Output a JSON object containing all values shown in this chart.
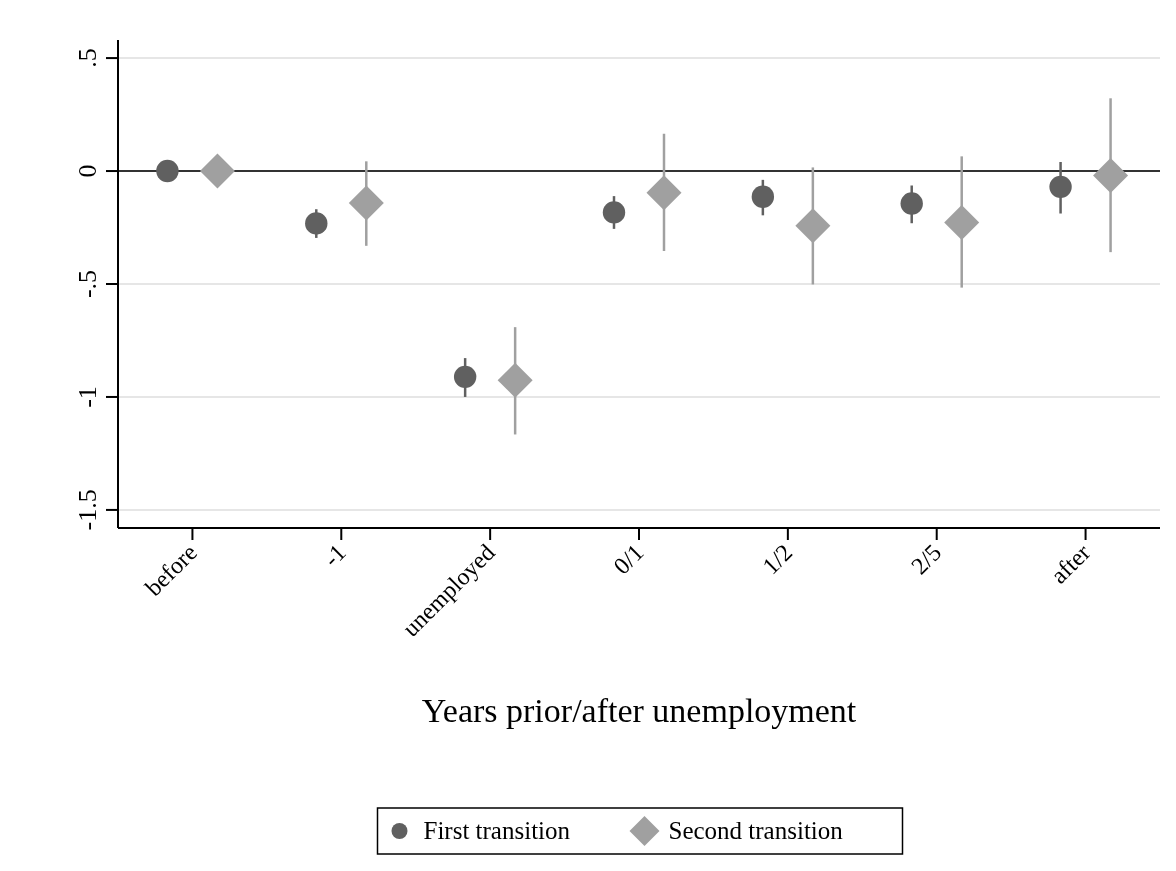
{
  "chart_data": {
    "type": "scatter",
    "xlabel": "Years prior/after unemployment",
    "categories": [
      "before",
      "-1",
      "unemployed",
      "0/1",
      "1/2",
      "2/5",
      "after"
    ],
    "series": [
      {
        "name": "First transition",
        "color": "#606060",
        "marker": "circle",
        "values": [
          0,
          -0.232,
          -0.911,
          -0.183,
          -0.114,
          -0.144,
          -0.07
        ],
        "errors": [
          null,
          [
            -0.296,
            -0.169
          ],
          [
            -1.0,
            -0.828
          ],
          [
            -0.256,
            -0.111
          ],
          [
            -0.196,
            -0.039
          ],
          [
            -0.231,
            -0.064
          ],
          [
            -0.188,
            0.04
          ]
        ]
      },
      {
        "name": "Second transition",
        "color": "#a0a0a0",
        "marker": "diamond",
        "values": [
          0,
          -0.141,
          -0.926,
          -0.096,
          -0.242,
          -0.228,
          -0.02
        ],
        "errors": [
          null,
          [
            -0.331,
            0.043
          ],
          [
            -1.166,
            -0.691
          ],
          [
            -0.354,
            0.165
          ],
          [
            -0.502,
            0.016
          ],
          [
            -0.516,
            0.065
          ],
          [
            -0.359,
            0.322
          ]
        ]
      }
    ],
    "ylim": [
      -1.58,
      0.58
    ],
    "yticks": [
      {
        "value": 0.5,
        "label": ".5"
      },
      0,
      {
        "value": -0.5,
        "label": "-.5"
      },
      -1,
      -1.5
    ],
    "ref_lines": [
      {
        "axis": "y",
        "value": 0,
        "color": "#333333"
      }
    ],
    "grid": "y",
    "legend": "bottom"
  }
}
